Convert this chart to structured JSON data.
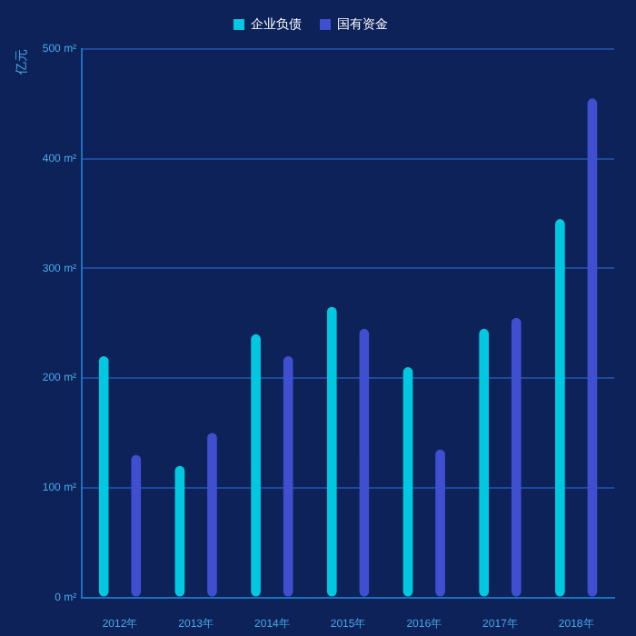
{
  "chart_data": {
    "type": "bar",
    "ylabel": "亿元",
    "categories": [
      "2012年",
      "2013年",
      "2014年",
      "2015年",
      "2016年",
      "2017年",
      "2018年"
    ],
    "series": [
      {
        "name": "企业负债",
        "color": "#00c8e0",
        "values": [
          220,
          120,
          240,
          265,
          210,
          245,
          345
        ]
      },
      {
        "name": "国有资金",
        "color": "#3f4fd0",
        "values": [
          130,
          150,
          220,
          245,
          135,
          255,
          455
        ]
      }
    ],
    "ylim": [
      0,
      500
    ],
    "yticks": [
      {
        "value": 0,
        "label": "0 m²"
      },
      {
        "value": 100,
        "label": "100 m²"
      },
      {
        "value": 200,
        "label": "200 m²"
      },
      {
        "value": 300,
        "label": "300 m²"
      },
      {
        "value": 400,
        "label": "400 m²"
      },
      {
        "value": 500,
        "label": "500 m²"
      }
    ],
    "grid": "y",
    "legend": "top"
  }
}
